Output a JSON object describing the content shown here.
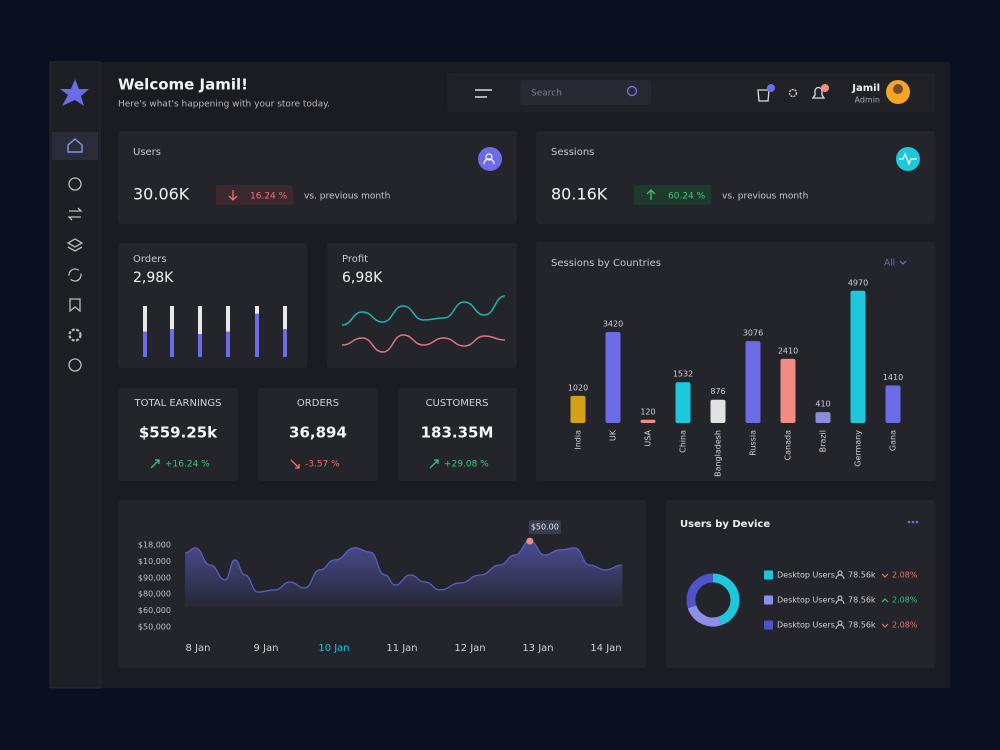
{
  "header": {
    "title": "Welcome Jamil!",
    "subtitle": "Here's what's happening with your store today.",
    "search_placeholder": "Search",
    "user_name": "Jamil",
    "user_role": "Admin"
  },
  "kpis": [
    {
      "label": "Users",
      "value": "30.06K",
      "change": "16.24 %",
      "trend": "down",
      "compare": "vs. previous month",
      "icon_color": "#6c6ce6"
    },
    {
      "label": "Sessions",
      "value": "80.16K",
      "change": "60.24 %",
      "trend": "up",
      "compare": "vs. previous month",
      "icon_color": "#1ec8dc"
    }
  ],
  "orders_card": {
    "label": "Orders",
    "value": "2,98K",
    "bars": [
      50,
      55,
      45,
      50,
      85,
      55
    ],
    "ylim": [
      0,
      100
    ],
    "color": "#6c6ce6"
  },
  "profit_card": {
    "label": "Profit",
    "value": "6,98K",
    "ylim": [
      0,
      80
    ],
    "series": [
      {
        "color": "#1fb5b0",
        "values": [
          35,
          48,
          38,
          54,
          40,
          42,
          58,
          45,
          64
        ]
      },
      {
        "color": "#e0718a",
        "values": [
          15,
          22,
          8,
          25,
          15,
          22,
          14,
          24,
          20
        ]
      }
    ]
  },
  "stats": [
    {
      "label": "TOTAL EARNINGS",
      "value": "$559.25k",
      "change": "+16.24 %",
      "trend": "up"
    },
    {
      "label": "ORDERS",
      "value": "36,894",
      "change": "-3.57 %",
      "trend": "down"
    },
    {
      "label": "CUSTOMERS",
      "value": "183.35M",
      "change": "+29.08 %",
      "trend": "up"
    }
  ],
  "chart_data": [
    {
      "type": "bar",
      "title": "Sessions by Countries",
      "filter": "All",
      "categories": [
        "India",
        "UK",
        "USA",
        "China",
        "Bangladesh",
        "Russia",
        "Canada",
        "Brazil",
        "Germany",
        "Gana"
      ],
      "values": [
        1020,
        3420,
        120,
        1532,
        876,
        3076,
        2410,
        410,
        4970,
        1410
      ],
      "colors": [
        "#d4a017",
        "#6c6ce6",
        "#f28b82",
        "#1ec8dc",
        "#e2e2e2",
        "#6c6ce6",
        "#f28b82",
        "#8b8fd8",
        "#1ec8dc",
        "#6c6ce6"
      ],
      "ylim": [
        0,
        5000
      ]
    },
    {
      "type": "line",
      "x": [
        7.81,
        7.96,
        8.18,
        8.4,
        8.54,
        8.69,
        8.88,
        9.13,
        9.35,
        9.57,
        9.79,
        10.01,
        10.31,
        10.53,
        10.75,
        10.9,
        11.12,
        11.34,
        11.56,
        11.85,
        12.15,
        12.44,
        12.66,
        12.88,
        13.1,
        13.32,
        13.54,
        13.76,
        13.99,
        14.24
      ],
      "values": [
        4.51,
        4.82,
        3.78,
        2.87,
        4.09,
        3.17,
        2.13,
        2.26,
        2.74,
        2.38,
        3.48,
        4.09,
        4.82,
        4.57,
        3.17,
        2.56,
        3.17,
        2.74,
        2.26,
        2.68,
        3.17,
        3.78,
        4.39,
        5.24,
        4.39,
        4.7,
        4.82,
        3.78,
        3.48,
        3.78
      ],
      "xlim": [
        7.81,
        14.24
      ],
      "ylim": [
        0,
        6
      ],
      "xticks": [
        {
          "value": 8,
          "label": "8 Jan"
        },
        {
          "value": 9,
          "label": "9 Jan"
        },
        {
          "value": 10,
          "label": "10 Jan"
        },
        {
          "value": 11,
          "label": "11 Jan"
        },
        {
          "value": 12,
          "label": "12 Jan"
        },
        {
          "value": 13,
          "label": "13 Jan"
        },
        {
          "value": 14,
          "label": "14 Jan"
        }
      ],
      "yticks": [
        {
          "value": 5,
          "label": "$18,000"
        },
        {
          "value": 4,
          "label": "$10,000"
        },
        {
          "value": 3,
          "label": "$90,000"
        },
        {
          "value": 2,
          "label": "$80,000"
        },
        {
          "value": 1,
          "label": "$60,000"
        },
        {
          "value": 0,
          "label": "$50,000"
        }
      ],
      "color": "#6c6ce6",
      "highlight_xtick": 2,
      "highlight_color": "#1ec8dc",
      "annotation": {
        "text": "$50.00",
        "index": 23,
        "color": "#f28b82"
      }
    },
    {
      "type": "pie",
      "title": "Users by Device",
      "donut": true,
      "categories": [
        "Desktop Users",
        "Desktop Users",
        "Desktop Users"
      ],
      "values": [
        45,
        25,
        30
      ],
      "colors": [
        "#1ec8dc",
        "#8b8fe8",
        "#5052c8"
      ],
      "users": [
        "78.56k",
        "78.56k",
        "78.56k"
      ],
      "changes": [
        "2.08%",
        "2.08%",
        "2.08%"
      ],
      "trends": [
        "down",
        "up",
        "down"
      ]
    }
  ]
}
